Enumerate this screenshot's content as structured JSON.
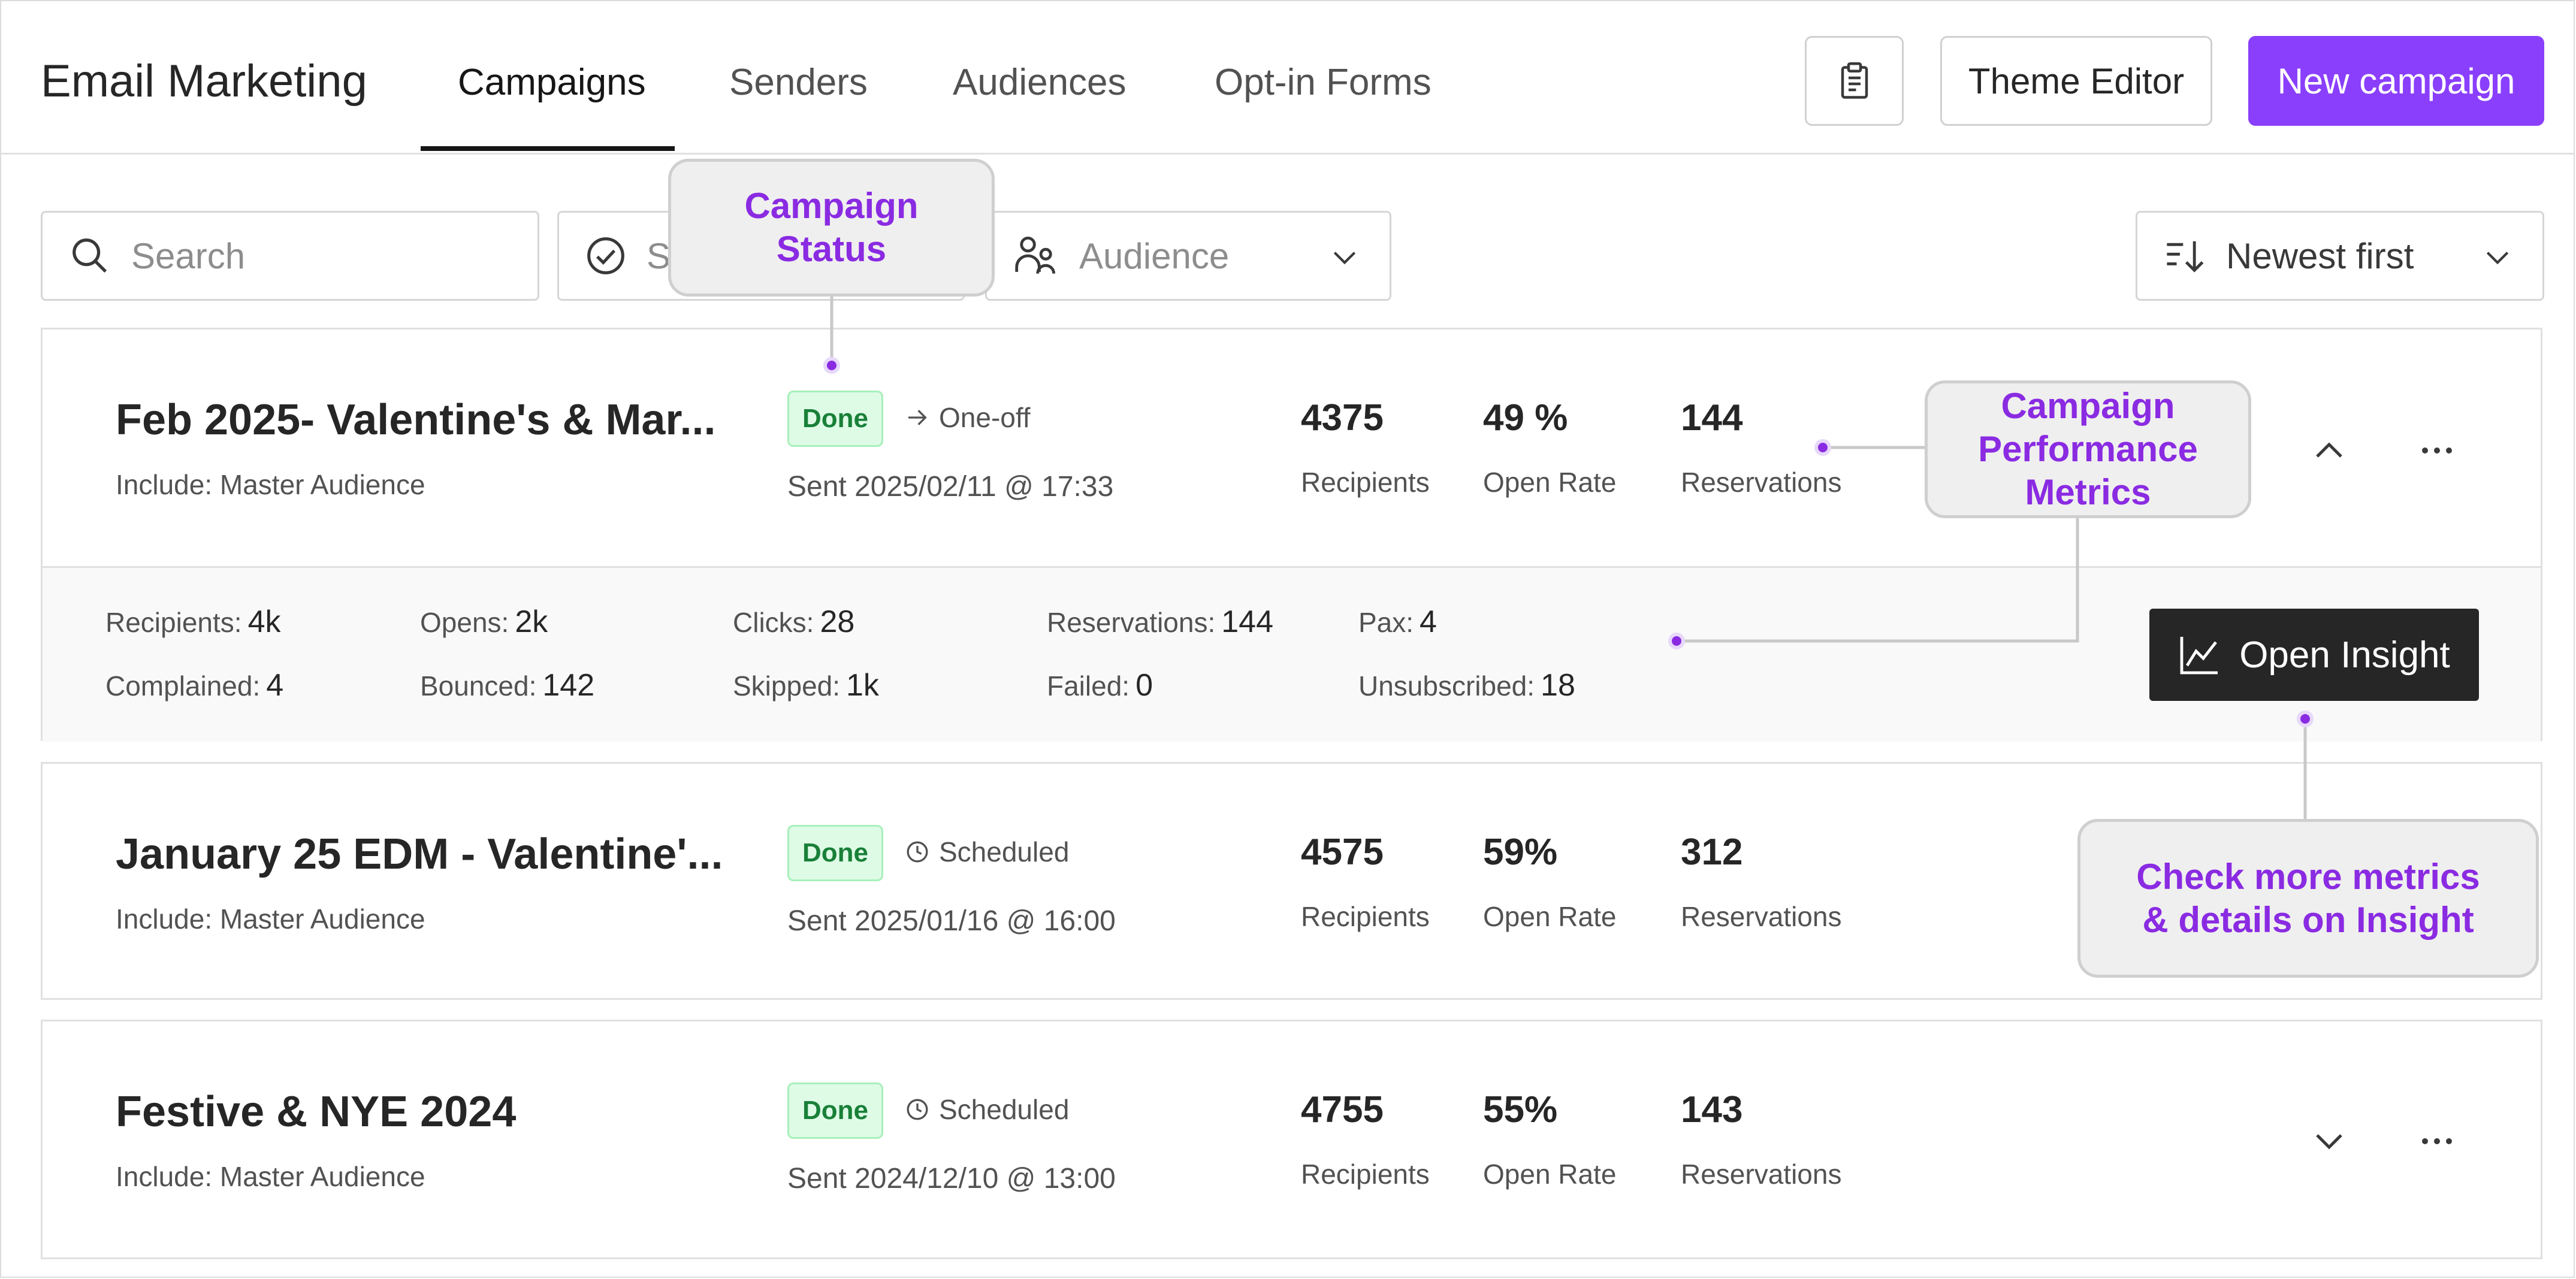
{
  "header": {
    "app_title": "Email Marketing",
    "tabs": [
      {
        "label": "Campaigns",
        "active": true
      },
      {
        "label": "Senders",
        "active": false
      },
      {
        "label": "Audiences",
        "active": false
      },
      {
        "label": "Opt-in Forms",
        "active": false
      }
    ],
    "clipboard_icon": "clipboard-icon",
    "theme_editor_label": "Theme Editor",
    "new_campaign_label": "New campaign"
  },
  "filters": {
    "search_placeholder": "Search",
    "status_placeholder": "S",
    "audience_placeholder": "Audience",
    "sort_label": "Newest first"
  },
  "campaigns": [
    {
      "title": "Feb 2025- Valentine's & Mar...",
      "include": "Include: Master Audience",
      "status": "Done",
      "type": "One-off",
      "sent": "Sent 2025/02/11 @ 17:33",
      "recipients_value": "4375",
      "recipients_label": "Recipients",
      "open_rate_value": "49 %",
      "open_rate_label": "Open Rate",
      "reservations_value": "144",
      "reservations_label": "Reservations",
      "expanded": true,
      "details": [
        {
          "label": "Recipients:",
          "value": "4k"
        },
        {
          "label": "Opens:",
          "value": "2k"
        },
        {
          "label": "Clicks:",
          "value": "28"
        },
        {
          "label": "Reservations:",
          "value": "144"
        },
        {
          "label": "Pax:",
          "value": "4"
        },
        {
          "label": "Complained:",
          "value": "4"
        },
        {
          "label": "Bounced:",
          "value": "142"
        },
        {
          "label": "Skipped:",
          "value": "1k"
        },
        {
          "label": "Failed:",
          "value": "0"
        },
        {
          "label": "Unsubscribed:",
          "value": "18"
        }
      ],
      "insight_label": "Open Insight"
    },
    {
      "title": "January 25 EDM - Valentine'...",
      "include": "Include: Master Audience",
      "status": "Done",
      "type": "Scheduled",
      "sent": "Sent 2025/01/16 @ 16:00",
      "recipients_value": "4575",
      "recipients_label": "Recipients",
      "open_rate_value": "59%",
      "open_rate_label": "Open Rate",
      "reservations_value": "312",
      "reservations_label": "Reservations"
    },
    {
      "title": "Festive & NYE 2024",
      "include": "Include: Master Audience",
      "status": "Done",
      "type": "Scheduled",
      "sent": "Sent 2024/12/10 @ 13:00",
      "recipients_value": "4755",
      "recipients_label": "Recipients",
      "open_rate_value": "55%",
      "open_rate_label": "Open Rate",
      "reservations_value": "143",
      "reservations_label": "Reservations"
    }
  ],
  "annotations": {
    "status": [
      "Campaign",
      "Status"
    ],
    "metrics": [
      "Campaign",
      "Performance",
      "Metrics"
    ],
    "insight": [
      "Check more metrics",
      "& details on Insight"
    ],
    "color": "#8a2be2"
  },
  "colors": {
    "accent": "#8a3ffc",
    "done_bg": "#defbe6",
    "done_text": "#198038",
    "annotation_text": "#8a2be2"
  }
}
